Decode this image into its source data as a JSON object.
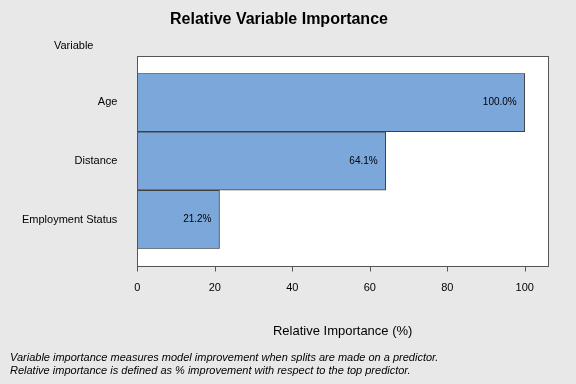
{
  "chart_data": {
    "type": "bar",
    "orientation": "horizontal",
    "title": "Relative Variable Importance",
    "ylabel": "Variable",
    "xlabel": "Relative Importance (%)",
    "categories": [
      "Age",
      "Distance",
      "Employment Status"
    ],
    "values": [
      100,
      64.1,
      21.2
    ],
    "value_labels": [
      "100.0%",
      "64.1%",
      "21.2%"
    ],
    "data_labels": true,
    "color": "#7ba7db",
    "xlim": [
      0,
      106
    ],
    "xticks": [
      0,
      20,
      40,
      60,
      80,
      100
    ],
    "grid": false,
    "annotations": [
      "Variable importance measures model improvement when splits are made on a predictor.",
      "Relative importance is defined as % improvement with respect to the top predictor."
    ]
  }
}
